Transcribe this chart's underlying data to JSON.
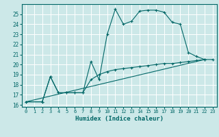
{
  "xlabel": "Humidex (Indice chaleur)",
  "bg_color": "#cce8e8",
  "line_color": "#006666",
  "grid_color": "#ffffff",
  "xlim": [
    -0.5,
    23.5
  ],
  "ylim": [
    15.8,
    26.0
  ],
  "xticks": [
    0,
    1,
    2,
    3,
    4,
    5,
    6,
    7,
    8,
    9,
    10,
    11,
    12,
    13,
    14,
    15,
    16,
    17,
    18,
    19,
    20,
    21,
    22,
    23
  ],
  "yticks": [
    16,
    17,
    18,
    19,
    20,
    21,
    22,
    23,
    24,
    25
  ],
  "line1_x": [
    0,
    2,
    3,
    4,
    5,
    6,
    7,
    8,
    9,
    10,
    11,
    12,
    13,
    14,
    15,
    16,
    17,
    18,
    19,
    20,
    21,
    22
  ],
  "line1_y": [
    16.3,
    16.3,
    18.8,
    17.2,
    17.2,
    17.2,
    17.2,
    20.3,
    18.5,
    23.0,
    25.5,
    24.0,
    24.3,
    25.3,
    25.4,
    25.4,
    25.2,
    24.2,
    24.0,
    21.2,
    20.8,
    20.5
  ],
  "line2_x": [
    0,
    2,
    3,
    4,
    5,
    6,
    7,
    8,
    9,
    10,
    11,
    12,
    13,
    14,
    15,
    16,
    17,
    18,
    19,
    20,
    21,
    22,
    23
  ],
  "line2_y": [
    16.3,
    16.3,
    18.8,
    17.2,
    17.2,
    17.2,
    17.2,
    18.5,
    19.0,
    19.3,
    19.5,
    19.6,
    19.7,
    19.8,
    19.9,
    20.0,
    20.1,
    20.1,
    20.2,
    20.3,
    20.4,
    20.5,
    20.5
  ],
  "line3_x": [
    0,
    22
  ],
  "line3_y": [
    16.3,
    20.5
  ]
}
